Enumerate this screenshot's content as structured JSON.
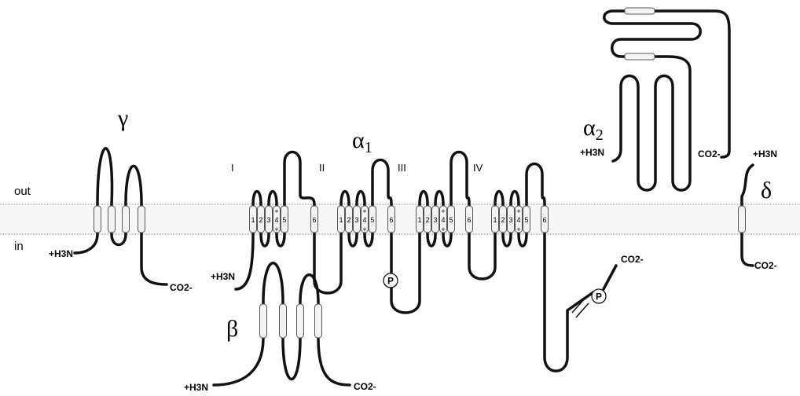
{
  "membrane": {
    "outside": "out",
    "inside": "in"
  },
  "gamma": {
    "name": "γ",
    "n_terminus": "+H3N",
    "c_terminus": "CO2-"
  },
  "alpha1": {
    "name": "α",
    "subscript": "1",
    "n_terminus": "+H3N",
    "c_terminus": "CO2-",
    "phosphorylation_sites": [
      "P",
      "P"
    ],
    "domains": [
      {
        "label": "I",
        "segments": [
          "1",
          "2",
          "3",
          "4",
          "5",
          "6"
        ],
        "charges": [
          "+",
          "+"
        ]
      },
      {
        "label": "II",
        "segments": [
          "1",
          "2",
          "3",
          "4",
          "5",
          "6"
        ],
        "charges": [
          "+",
          "+"
        ]
      },
      {
        "label": "III",
        "segments": [
          "1",
          "2",
          "3",
          "4",
          "5",
          "6"
        ],
        "charges": [
          "+",
          "+"
        ]
      },
      {
        "label": "IV",
        "segments": [
          "1",
          "2",
          "3",
          "4",
          "5",
          "6"
        ],
        "charges": [
          "+",
          "+"
        ]
      }
    ]
  },
  "beta": {
    "name": "β",
    "n_terminus": "+H3N",
    "c_terminus": "CO2-"
  },
  "alpha2": {
    "name": "α",
    "subscript": "2",
    "n_terminus": "+H3N",
    "c_terminus": "CO2-"
  },
  "delta": {
    "name": "δ",
    "n_terminus": "+H3N",
    "c_terminus": "CO2-"
  }
}
